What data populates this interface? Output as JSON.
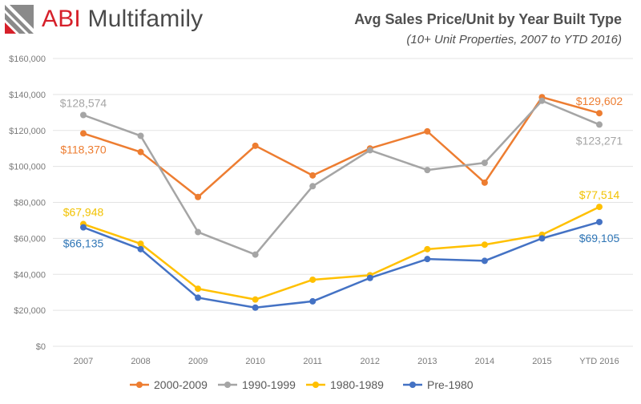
{
  "brand": {
    "abi": "ABI",
    "rest": " Multifamily",
    "colors": {
      "red": "#d6202a",
      "gray": "#8a8a8a",
      "dark": "#4a4a4a"
    }
  },
  "chart_data": {
    "type": "line",
    "title": "Avg Sales Price/Unit by Year Built Type",
    "subtitle": "(10+ Unit Properties, 2007 to YTD 2016)",
    "xlabel": "",
    "ylabel": "",
    "ylim": [
      0,
      160000
    ],
    "ytick_step": 20000,
    "yticks": [
      "$0",
      "$20,000",
      "$40,000",
      "$60,000",
      "$80,000",
      "$100,000",
      "$120,000",
      "$140,000",
      "$160,000"
    ],
    "grid": true,
    "legend_position": "bottom",
    "categories": [
      "2007",
      "2008",
      "2009",
      "2010",
      "2011",
      "2012",
      "2013",
      "2014",
      "2015",
      "YTD 2016"
    ],
    "series": [
      {
        "name": "2000-2009",
        "color": "#ed7d31",
        "values": [
          118370,
          108000,
          83000,
          111500,
          95000,
          110000,
          119500,
          91000,
          138500,
          129602
        ],
        "labels": [
          {
            "index": 0,
            "text": "$118,370",
            "pos": "below"
          },
          {
            "index": 9,
            "text": "$129,602",
            "pos": "above"
          }
        ]
      },
      {
        "name": "1990-1999",
        "color": "#a5a5a5",
        "values": [
          128574,
          117000,
          63500,
          51000,
          89000,
          109000,
          98000,
          102000,
          136500,
          123271
        ],
        "labels": [
          {
            "index": 0,
            "text": "$128,574",
            "pos": "above"
          },
          {
            "index": 9,
            "text": "$123,271",
            "pos": "below"
          }
        ]
      },
      {
        "name": "1980-1989",
        "color": "#ffc000",
        "labelColor": "#f2c200",
        "values": [
          67948,
          57000,
          32000,
          26000,
          37000,
          39500,
          54000,
          56500,
          62000,
          77514
        ],
        "labels": [
          {
            "index": 0,
            "text": "$67,948",
            "pos": "above"
          },
          {
            "index": 9,
            "text": "$77,514",
            "pos": "above"
          }
        ]
      },
      {
        "name": "Pre-1980",
        "color": "#4472c4",
        "labelColor": "#2e75b6",
        "values": [
          66135,
          54000,
          27000,
          21500,
          25000,
          38000,
          48500,
          47500,
          60000,
          69105
        ],
        "labels": [
          {
            "index": 0,
            "text": "$66,135",
            "pos": "below"
          },
          {
            "index": 9,
            "text": "$69,105",
            "pos": "below"
          }
        ]
      }
    ]
  }
}
